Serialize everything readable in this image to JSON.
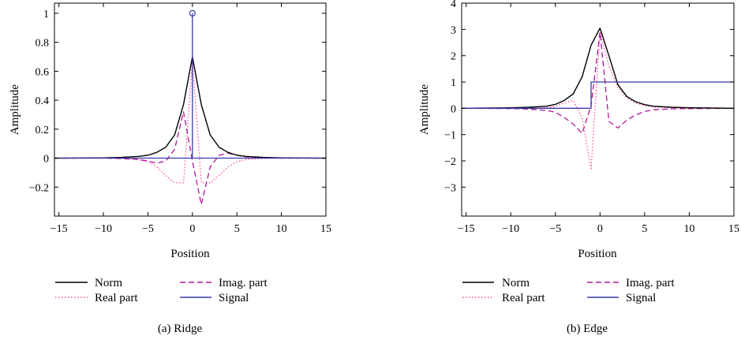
{
  "colors": {
    "norm": "#000000",
    "real": "#ff4f9a",
    "imag": "#b0179c",
    "signal": "#3a3aa8"
  },
  "chart_data": [
    {
      "type": "line",
      "caption": "(a) Ridge",
      "xlabel": "Position",
      "ylabel": "Amplitude",
      "xlim": [
        -15.5,
        15
      ],
      "ylim": [
        -0.4,
        1.07
      ],
      "xticks": [
        -15,
        -10,
        -5,
        0,
        5,
        10,
        15
      ],
      "xtick_labels": [
        "−15",
        "−10",
        "−5",
        "0",
        "5",
        "10",
        "15"
      ],
      "yticks": [
        -0.2,
        0,
        0.2,
        0.4,
        0.6,
        0.8,
        1
      ],
      "ytick_labels": [
        "−0.2",
        "0",
        "0.2",
        "0.4",
        "0.6",
        "0.8",
        "1"
      ],
      "legend": [
        {
          "key": "norm",
          "label": "Norm"
        },
        {
          "key": "imag",
          "label": "Imag. part"
        },
        {
          "key": "real",
          "label": "Real part"
        },
        {
          "key": "signal",
          "label": "Signal"
        }
      ],
      "series": [
        {
          "key": "norm",
          "name": "Norm",
          "style": "solid",
          "x": [
            -15.5,
            -10,
            -8,
            -6,
            -5,
            -4,
            -3,
            -2,
            -1,
            0,
            1,
            2,
            3,
            4,
            5,
            6,
            8,
            10,
            15
          ],
          "y": [
            0,
            0.002,
            0.005,
            0.012,
            0.02,
            0.04,
            0.075,
            0.16,
            0.37,
            0.7,
            0.37,
            0.16,
            0.075,
            0.04,
            0.02,
            0.012,
            0.005,
            0.002,
            0
          ]
        },
        {
          "key": "real",
          "name": "Real part",
          "style": "dotted",
          "x": [
            -15.5,
            -10,
            -8,
            -6,
            -5,
            -4,
            -3,
            -2,
            -1,
            0,
            1,
            2,
            3,
            4,
            5,
            6,
            8,
            10,
            15
          ],
          "y": [
            0,
            0,
            -0.002,
            -0.01,
            -0.025,
            -0.06,
            -0.12,
            -0.17,
            -0.17,
            0.68,
            -0.17,
            -0.17,
            -0.12,
            -0.06,
            -0.025,
            -0.01,
            -0.002,
            0,
            0
          ]
        },
        {
          "key": "imag",
          "name": "Imag. part",
          "style": "dashed",
          "x": [
            -15.5,
            -10,
            -8,
            -6,
            -5,
            -4,
            -3,
            -2,
            -1,
            0,
            1,
            2,
            3,
            4,
            5,
            6,
            8,
            10,
            15
          ],
          "y": [
            0,
            0,
            -0.003,
            -0.01,
            -0.02,
            -0.035,
            -0.02,
            0.06,
            0.32,
            -0.02,
            -0.32,
            -0.06,
            0.02,
            0.035,
            0.02,
            0.01,
            0.003,
            0,
            0
          ]
        },
        {
          "key": "signal",
          "name": "Signal",
          "style": "stem",
          "x": [
            -15.5,
            0,
            15
          ],
          "y": [
            0,
            1,
            0
          ]
        }
      ]
    },
    {
      "type": "line",
      "caption": "(b) Edge",
      "xlabel": "Position",
      "ylabel": "Amplitude",
      "xlim": [
        -15.5,
        15
      ],
      "ylim": [
        -4.1,
        4
      ],
      "xticks": [
        -15,
        -10,
        -5,
        0,
        5,
        10,
        15
      ],
      "xtick_labels": [
        "−15",
        "−10",
        "−5",
        "0",
        "5",
        "10",
        "15"
      ],
      "yticks": [
        -3,
        -2,
        -1,
        0,
        1,
        2,
        3,
        4
      ],
      "ytick_labels": [
        "−3",
        "−2",
        "−1",
        "0",
        "1",
        "2",
        "3",
        "4"
      ],
      "legend": [
        {
          "key": "norm",
          "label": "Norm"
        },
        {
          "key": "imag",
          "label": "Imag. part"
        },
        {
          "key": "real",
          "label": "Real part"
        },
        {
          "key": "signal",
          "label": "Signal"
        }
      ],
      "series": [
        {
          "key": "norm",
          "name": "Norm",
          "style": "solid",
          "x": [
            -15.5,
            -10,
            -8,
            -6,
            -5,
            -4,
            -3,
            -2,
            -1,
            0,
            1,
            2,
            3,
            4,
            5,
            6,
            8,
            10,
            15
          ],
          "y": [
            0,
            0.02,
            0.04,
            0.08,
            0.15,
            0.3,
            0.55,
            1.2,
            2.4,
            3.05,
            2.0,
            0.9,
            0.45,
            0.25,
            0.14,
            0.08,
            0.04,
            0.02,
            0
          ]
        },
        {
          "key": "real",
          "name": "Real part",
          "style": "dotted",
          "x": [
            -15.5,
            -10,
            -8,
            -6,
            -5,
            -4,
            -3,
            -2,
            -1,
            0,
            1,
            2,
            3,
            4,
            5,
            6,
            8,
            10,
            15
          ],
          "y": [
            0,
            0,
            0,
            0.02,
            0.07,
            0.2,
            0.3,
            -0.35,
            -2.3,
            2.9,
            1.6,
            0.8,
            0.4,
            0.2,
            0.1,
            0.05,
            0.02,
            0,
            0
          ]
        },
        {
          "key": "imag",
          "name": "Imag. part",
          "style": "dashed",
          "x": [
            -15.5,
            -10,
            -8,
            -6,
            -5,
            -4,
            -3,
            -2,
            -1,
            0,
            1,
            2,
            3,
            4,
            5,
            6,
            8,
            10,
            15
          ],
          "y": [
            0,
            -0.01,
            -0.03,
            -0.08,
            -0.15,
            -0.35,
            -0.6,
            -0.95,
            0.1,
            2.9,
            -0.5,
            -0.75,
            -0.45,
            -0.25,
            -0.12,
            -0.06,
            -0.02,
            -0.01,
            0
          ]
        },
        {
          "key": "signal",
          "name": "Signal",
          "style": "step",
          "x": [
            -15.5,
            -1,
            -1,
            15
          ],
          "y": [
            0,
            0,
            1,
            1
          ]
        }
      ]
    }
  ]
}
